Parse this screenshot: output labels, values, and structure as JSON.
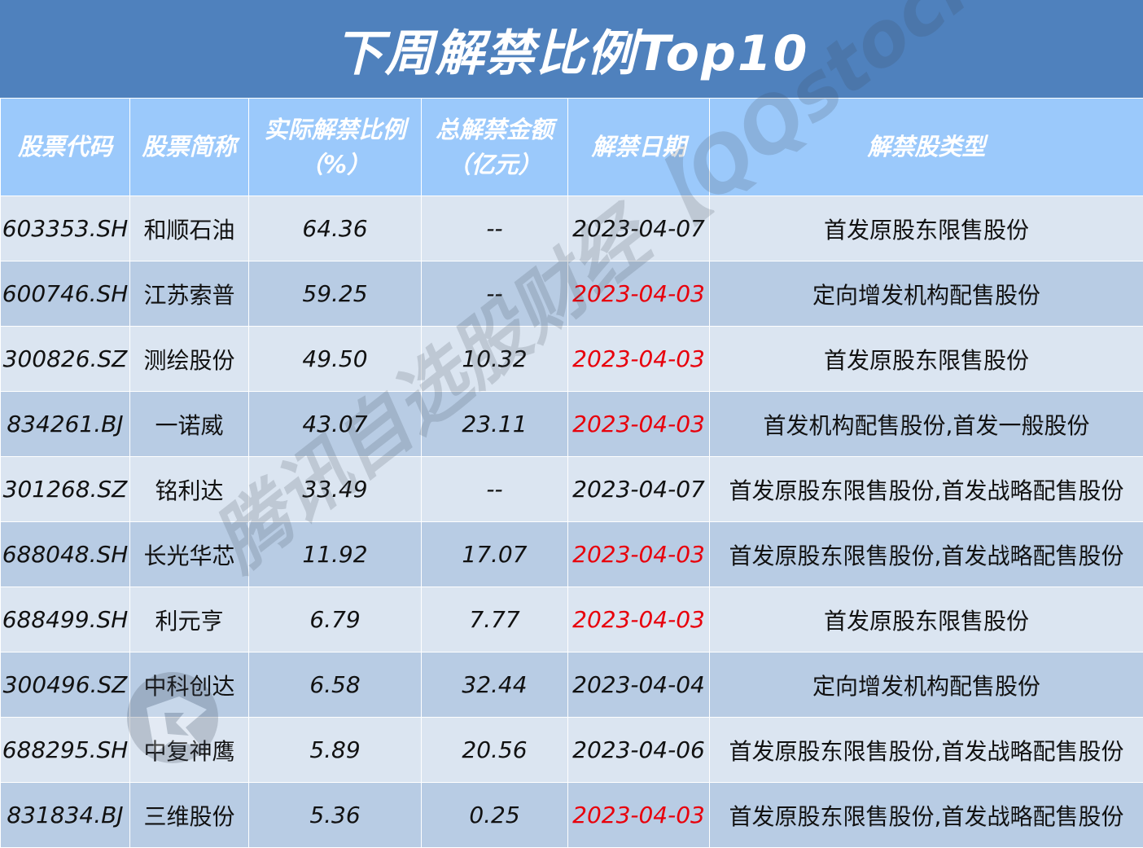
{
  "title": "下周解禁比例Top10",
  "header": {
    "code": "股票代码",
    "name": "股票简称",
    "ratio_line1": "实际解禁比例",
    "ratio_line2": "（%）",
    "amount_line1": "总解禁金额",
    "amount_line2": "（亿元）",
    "date": "解禁日期",
    "type": "解禁股类型"
  },
  "rows": [
    {
      "code": "603353.SH",
      "name": "和顺石油",
      "ratio": "64.36",
      "amount": "--",
      "date": "2023-04-07",
      "type": "首发原股东限售股份"
    },
    {
      "code": "600746.SH",
      "name": "江苏索普",
      "ratio": "59.25",
      "amount": "--",
      "date": "2023-04-03",
      "type": "定向增发机构配售股份"
    },
    {
      "code": "300826.SZ",
      "name": "测绘股份",
      "ratio": "49.50",
      "amount": "10.32",
      "date": "2023-04-03",
      "type": "首发原股东限售股份"
    },
    {
      "code": "834261.BJ",
      "name": "一诺威",
      "ratio": "43.07",
      "amount": "23.11",
      "date": "2023-04-03",
      "type": "首发机构配售股份,首发一般股份"
    },
    {
      "code": "301268.SZ",
      "name": "铭利达",
      "ratio": "33.49",
      "amount": "--",
      "date": "2023-04-07",
      "type": "首发原股东限售股份,首发战略配售股份"
    },
    {
      "code": "688048.SH",
      "name": "长光华芯",
      "ratio": "11.92",
      "amount": "17.07",
      "date": "2023-04-03",
      "type": "首发原股东限售股份,首发战略配售股份"
    },
    {
      "code": "688499.SH",
      "name": "利元亨",
      "ratio": "6.79",
      "amount": "7.77",
      "date": "2023-04-03",
      "type": "首发原股东限售股份"
    },
    {
      "code": "300496.SZ",
      "name": "中科创达",
      "ratio": "6.58",
      "amount": "32.44",
      "date": "2023-04-04",
      "type": "定向增发机构配售股份"
    },
    {
      "code": "688295.SH",
      "name": "中复神鹰",
      "ratio": "5.89",
      "amount": "20.56",
      "date": "2023-04-06",
      "type": "首发原股东限售股份,首发战略配售股份"
    },
    {
      "code": "831834.BJ",
      "name": "三维股份",
      "ratio": "5.36",
      "amount": "0.25",
      "date": "2023-04-03",
      "type": "首发原股东限售股份,首发战略配售股份"
    }
  ],
  "highlight_date": "2023-04-03",
  "watermark": "腾讯自选股财经【QQstock】",
  "watermark_logo": "Tencent",
  "colors": {
    "title_bg": "#4f81bd",
    "header_bg": "#9bc9fb",
    "row_light": "#dbe5f1",
    "row_dark": "#b8cce4",
    "highlight_text": "#e8000b"
  }
}
